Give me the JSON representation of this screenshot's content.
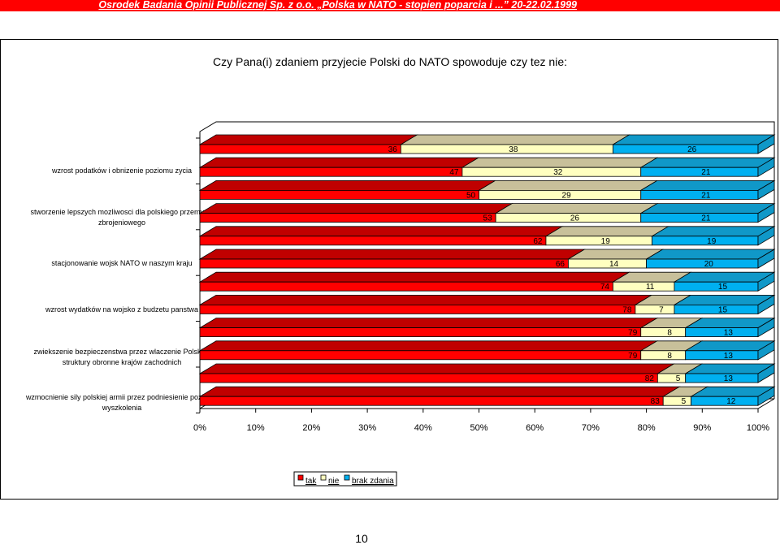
{
  "header": {
    "source_text": "Osrodek Badania Opinii Publicznej Sp. z o.o. „Polska w NATO - stopien poparcia i ...” 20-22.02.1999"
  },
  "page_number": "10",
  "colors": {
    "tak": "#ff0000",
    "nie": "#ffffc0",
    "brak": "#00b0f0",
    "tak_top": "#c00000",
    "nie_top": "#c8c09a",
    "brak_top": "#1098c8"
  },
  "chart_data": {
    "type": "bar",
    "orientation": "horizontal",
    "stacked": "100%",
    "title": "Czy Pana(i) zdaniem przyjecie Polski do NATO spowoduje czy tez nie:",
    "categories": [
      "wzrost podatków i obnizenie poziomu zycia",
      "stworzenie lepszych mozliwosci dla polskiego przemyslu zbrojeniowego",
      "stacjonowanie wojsk NATO w naszym kraju",
      "wzrost wydatków na wojsko z budzetu panstwa",
      "zwiekszenie bezpieczenstwa przez wlaczenie Polski w struktury obronne krajów zachodnich",
      "wzmocnienie sily polskiej armii przez podniesienie poziomu wyszkolenia"
    ],
    "series": [
      {
        "name": "tak",
        "values": [
          [
            36,
            47
          ],
          [
            50,
            53
          ],
          [
            62,
            66
          ],
          [
            74,
            78
          ],
          [
            79,
            79
          ],
          [
            82,
            83
          ]
        ]
      },
      {
        "name": "nie",
        "values": [
          [
            38,
            32
          ],
          [
            29,
            26
          ],
          [
            19,
            14
          ],
          [
            11,
            7
          ],
          [
            8,
            8
          ],
          [
            5,
            5
          ]
        ]
      },
      {
        "name": "brak zdania",
        "values": [
          [
            26,
            21
          ],
          [
            21,
            21
          ],
          [
            19,
            20
          ],
          [
            15,
            15
          ],
          [
            13,
            13
          ],
          [
            13,
            12
          ]
        ]
      }
    ],
    "x_ticks": [
      "0%",
      "10%",
      "20%",
      "30%",
      "40%",
      "50%",
      "60%",
      "70%",
      "80%",
      "90%",
      "100%"
    ],
    "xlim": [
      0,
      100
    ],
    "legend_position": "bottom"
  }
}
